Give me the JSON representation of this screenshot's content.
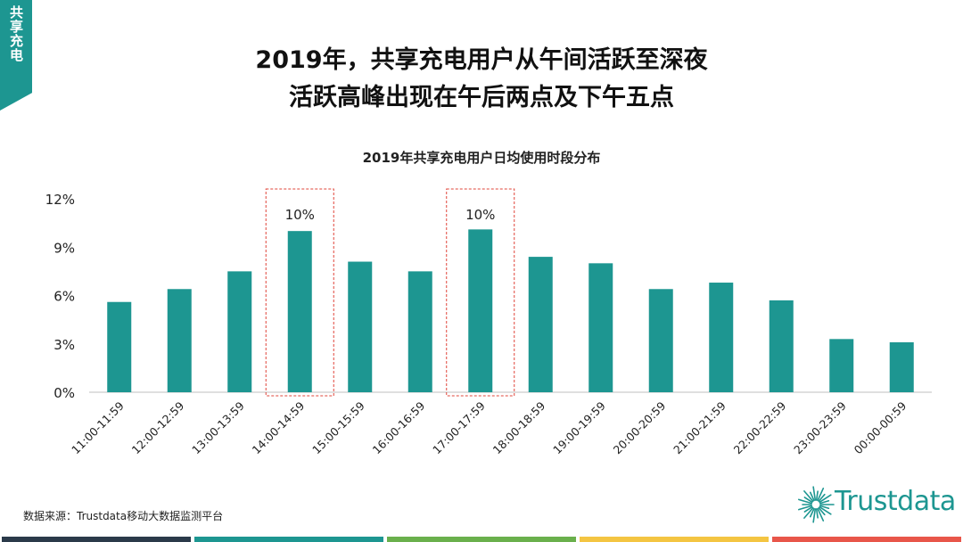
{
  "side_tab": {
    "label": "共享充电"
  },
  "headline": {
    "line1": "2019年，共享充电用户从午间活跃至深夜",
    "line2": "活跃高峰出现在午后两点及下午五点"
  },
  "source": "数据来源：Trustdata移动大数据监测平台",
  "logo": {
    "text": "Trustdata",
    "icon": "sunburst-icon"
  },
  "colors": {
    "accent": "#1d9691",
    "highlight_border": "#e0453a",
    "footer": [
      "#2b3a4a",
      "#1d9691",
      "#6ab04c",
      "#f4c542",
      "#e8564a"
    ]
  },
  "chart_data": {
    "type": "bar",
    "title": "2019年共享充电用户日均使用时段分布",
    "categories": [
      "11:00-11:59",
      "12:00-12:59",
      "13:00-13:59",
      "14:00-14:59",
      "15:00-15:59",
      "16:00-16:59",
      "17:00-17:59",
      "18:00-18:59",
      "19:00-19:59",
      "20:00-20:59",
      "21:00-21:59",
      "22:00-22:59",
      "23:00-23:59",
      "00:00-00:59"
    ],
    "values": [
      5.6,
      6.4,
      7.5,
      10.0,
      8.1,
      7.5,
      10.1,
      8.4,
      8.0,
      6.4,
      6.8,
      5.7,
      3.3,
      3.1
    ],
    "ylim": [
      0,
      12
    ],
    "yticks": [
      "0%",
      "3%",
      "6%",
      "9%",
      "12%"
    ],
    "ytick_values": [
      0,
      3,
      6,
      9,
      12
    ],
    "highlighted": [
      {
        "category": "14:00-14:59",
        "label": "10%"
      },
      {
        "category": "17:00-17:59",
        "label": "10%"
      }
    ],
    "grid": false,
    "bar_color": "#1d9691"
  }
}
